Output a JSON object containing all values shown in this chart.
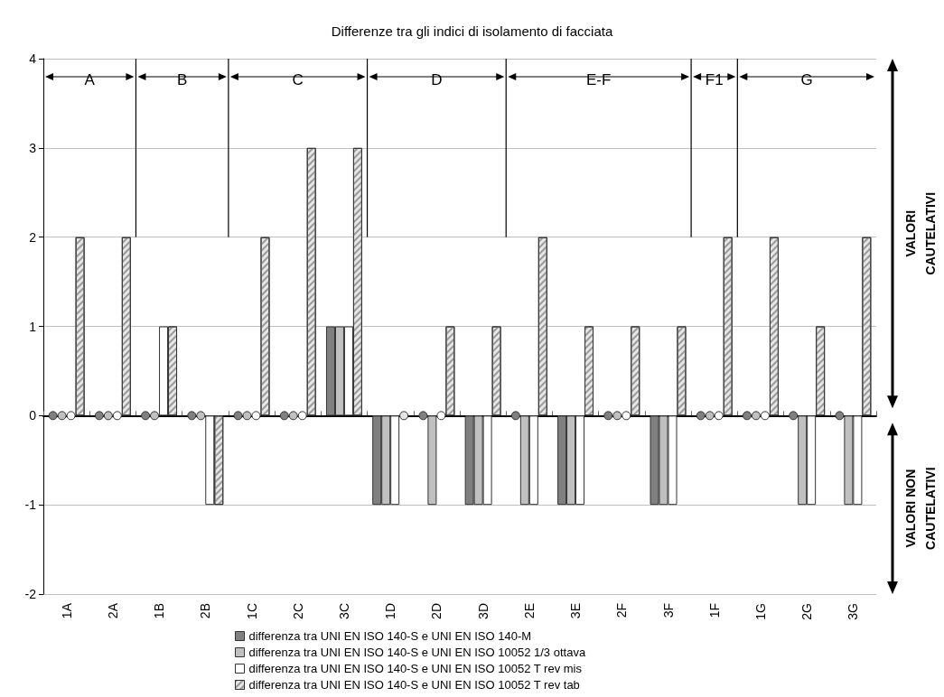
{
  "chart_data": {
    "type": "bar",
    "title": "Differenze tra gli indici di isolamento di facciata",
    "categories": [
      "1A",
      "2A",
      "1B",
      "2B",
      "1C",
      "2C",
      "3C",
      "1D",
      "2D",
      "3D",
      "2E",
      "3E",
      "2F",
      "3F",
      "1F",
      "1G",
      "2G",
      "3G"
    ],
    "series": [
      {
        "name": "differenza tra UNI EN ISO 140-S e UNI EN ISO 140-M",
        "color": "#808080",
        "values": [
          0,
          0,
          0,
          0,
          0,
          0,
          1,
          -1,
          0,
          -1,
          0,
          -1,
          0,
          -1,
          0,
          0,
          0,
          0
        ]
      },
      {
        "name": "differenza tra UNI EN ISO 140-S e UNI EN ISO 10052 1/3 ottava",
        "color": "#c0c0c0",
        "values": [
          0,
          0,
          0,
          0,
          0,
          0,
          1,
          -1,
          -1,
          -1,
          -1,
          -1,
          0,
          -1,
          0,
          0,
          -1,
          -1
        ]
      },
      {
        "name": "differenza tra UNI EN ISO 140-S e UNI EN ISO 10052 T rev mis",
        "color": "#ffffff",
        "values": [
          0,
          0,
          1,
          -1,
          0,
          0,
          1,
          -1,
          0,
          -1,
          -1,
          -1,
          0,
          -1,
          0,
          0,
          -1,
          -1
        ]
      },
      {
        "name": "differenza tra UNI EN ISO 140-S e UNI EN ISO 10052 T rev tab",
        "color": "#e6e6e6",
        "values": [
          2,
          2,
          1,
          -1,
          2,
          3,
          3,
          0,
          1,
          1,
          2,
          1,
          1,
          1,
          2,
          2,
          1,
          2
        ]
      }
    ],
    "ylim": [
      -2,
      4
    ],
    "yticks": [
      -2,
      -1,
      0,
      1,
      2,
      3,
      4
    ],
    "grid": "y",
    "legend": "bottom",
    "annotations": [
      "A",
      "B",
      "C",
      "D",
      "E-F",
      "F1",
      "G",
      "VALORI CAUTELATIVI",
      "VALORI NON CAUTELATIVI"
    ]
  }
}
